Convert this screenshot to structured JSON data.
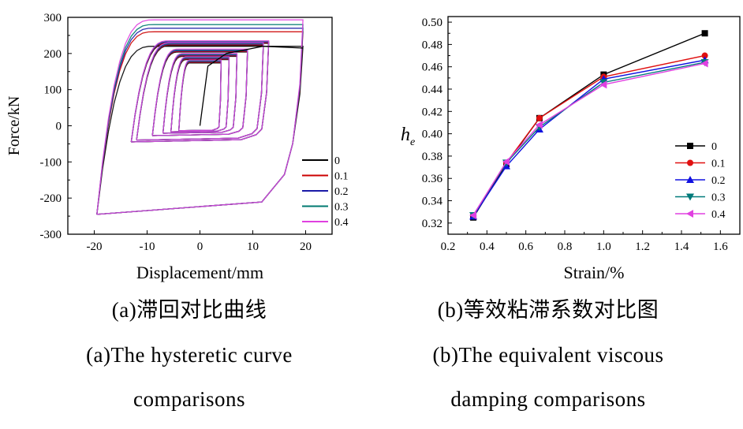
{
  "chart_data": [
    {
      "type": "line",
      "subtype": "hysteresis",
      "xlabel": "Displacement/mm",
      "ylabel": "Force/kN",
      "xlim": [
        -25,
        25
      ],
      "ylim": [
        -300,
        300
      ],
      "xticks": [
        -20,
        -10,
        0,
        10,
        20
      ],
      "yticks": [
        -300,
        -200,
        -100,
        0,
        100,
        200,
        300
      ],
      "legend_position": "lower-right",
      "amplitudes_mm": [
        4,
        5.5,
        7,
        9,
        12,
        13,
        19.5
      ],
      "series": [
        {
          "name": "0",
          "color": "#000000",
          "peak_force": [
            220,
            -245
          ]
        },
        {
          "name": "0.1",
          "color": "#cc0000",
          "peak_force": [
            260,
            -245
          ]
        },
        {
          "name": "0.2",
          "color": "#1a1aa8",
          "peak_force": [
            270,
            -245
          ]
        },
        {
          "name": "0.3",
          "color": "#007a70",
          "peak_force": [
            280,
            -245
          ]
        },
        {
          "name": "0.4",
          "color": "#e040e0",
          "peak_force": [
            293,
            -245
          ]
        }
      ]
    },
    {
      "type": "line",
      "xlabel": "Strain/%",
      "ylabel": "h_e",
      "xlim": [
        0.2,
        1.7
      ],
      "ylim": [
        0.31,
        0.505
      ],
      "xticks": [
        0.2,
        0.4,
        0.6,
        0.8,
        1.0,
        1.2,
        1.4,
        1.6
      ],
      "yticks": [
        0.32,
        0.34,
        0.36,
        0.38,
        0.4,
        0.42,
        0.44,
        0.46,
        0.48,
        0.5
      ],
      "legend_position": "center-right",
      "x": [
        0.33,
        0.5,
        0.67,
        1.0,
        1.52
      ],
      "series": [
        {
          "name": "0",
          "color": "#000000",
          "marker": "square",
          "values": [
            0.325,
            0.373,
            0.414,
            0.453,
            0.49
          ]
        },
        {
          "name": "0.1",
          "color": "#e01010",
          "marker": "circle",
          "values": [
            0.327,
            0.374,
            0.414,
            0.451,
            0.47
          ]
        },
        {
          "name": "0.2",
          "color": "#1010e0",
          "marker": "triangle-up",
          "values": [
            0.326,
            0.371,
            0.404,
            0.449,
            0.466
          ]
        },
        {
          "name": "0.3",
          "color": "#007a7a",
          "marker": "triangle-down",
          "values": [
            0.327,
            0.374,
            0.406,
            0.446,
            0.464
          ]
        },
        {
          "name": "0.4",
          "color": "#e040e0",
          "marker": "triangle-left",
          "values": [
            0.327,
            0.375,
            0.408,
            0.444,
            0.463
          ]
        }
      ]
    }
  ],
  "captions": {
    "a_zh": "(a)滞回对比曲线",
    "a_en_1": "(a)The hysteretic curve",
    "a_en_2": "comparisons",
    "b_zh": "(b)等效粘滞系数对比图",
    "b_en_1": "(b)The equivalent viscous",
    "b_en_2": "damping comparisons"
  }
}
